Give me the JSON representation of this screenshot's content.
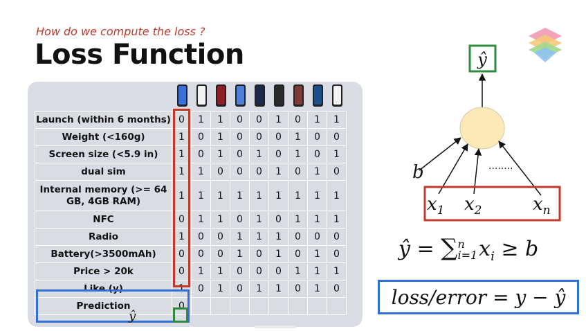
{
  "header": {
    "subtitle": "How do we compute the loss ?",
    "title": "Loss Function"
  },
  "table": {
    "rows": [
      {
        "label": "Launch (within 6 months)",
        "values": [
          "0",
          "1",
          "1",
          "0",
          "0",
          "1",
          "0",
          "1",
          "1"
        ]
      },
      {
        "label": "Weight (<160g)",
        "values": [
          "1",
          "0",
          "1",
          "0",
          "0",
          "0",
          "1",
          "0",
          "0"
        ]
      },
      {
        "label": "Screen size (<5.9 in)",
        "values": [
          "1",
          "0",
          "1",
          "0",
          "1",
          "0",
          "1",
          "0",
          "1"
        ]
      },
      {
        "label": "dual sim",
        "values": [
          "1",
          "1",
          "0",
          "0",
          "0",
          "1",
          "0",
          "1",
          "0"
        ]
      },
      {
        "label": "Internal memory (>= 64 GB, 4GB RAM)",
        "values": [
          "1",
          "1",
          "1",
          "1",
          "1",
          "1",
          "1",
          "1",
          "1"
        ]
      },
      {
        "label": "NFC",
        "values": [
          "0",
          "1",
          "1",
          "0",
          "1",
          "0",
          "1",
          "1",
          "1"
        ]
      },
      {
        "label": "Radio",
        "values": [
          "1",
          "0",
          "0",
          "1",
          "1",
          "1",
          "0",
          "0",
          "0"
        ]
      },
      {
        "label": "Battery(>3500mAh)",
        "values": [
          "0",
          "0",
          "0",
          "1",
          "0",
          "1",
          "0",
          "1",
          "0"
        ]
      },
      {
        "label": "Price > 20k",
        "values": [
          "0",
          "1",
          "1",
          "0",
          "0",
          "0",
          "1",
          "1",
          "1"
        ]
      },
      {
        "label": "Like (y)",
        "values": [
          "1",
          "0",
          "1",
          "0",
          "1",
          "1",
          "0",
          "1",
          "0"
        ]
      },
      {
        "label": "Prediction",
        "values": [
          "0",
          "",
          "",
          "",
          "",
          "",
          "",
          "",
          ""
        ]
      }
    ],
    "prediction_symbol": "ŷ"
  },
  "phones": {
    "screen_colors": [
      "#3b6fd8",
      "#f2f2f2",
      "#8a1f2a",
      "#4f7fd6",
      "#1b2a4a",
      "#2a2a2a",
      "#7a3b3b",
      "#1f4f8a",
      "#f3f3f3"
    ]
  },
  "diagram": {
    "output_label": "ŷ",
    "bias_label": "b",
    "dots": "........",
    "inputs": [
      {
        "base": "x",
        "sub": "1"
      },
      {
        "base": "x",
        "sub": "2"
      },
      {
        "base": "x",
        "sub": "n"
      }
    ],
    "neuron_color": "#fde9b8",
    "formula": {
      "lhs": "ŷ = ",
      "sum": "∑",
      "sup": "n",
      "sub": "i=1",
      "term": "x",
      "term_sub": "i",
      "rhs": " ≥ b"
    },
    "loss": "loss/error = y − ŷ"
  },
  "colors": {
    "red": "#c0392b",
    "blue": "#2f6fd6",
    "green": "#2e8b3e"
  }
}
